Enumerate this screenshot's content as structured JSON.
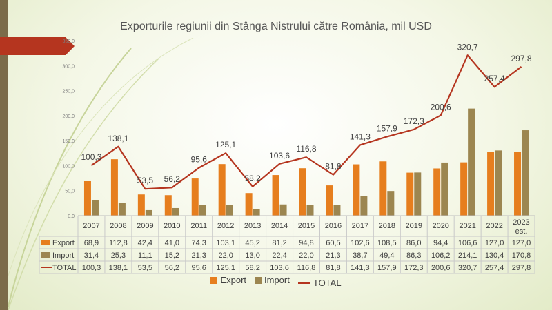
{
  "chart_data": {
    "type": "bar",
    "title": "Exporturile regiunii din Stânga Nistrului către România, mil USD",
    "categories": [
      "2007",
      "2008",
      "2009",
      "2010",
      "2011",
      "2012",
      "2013",
      "2014",
      "2015",
      "2016",
      "2017",
      "2018",
      "2019",
      "2020",
      "2021",
      "2022",
      "2023 est."
    ],
    "ylim": [
      0,
      350
    ],
    "yticks": [
      "0,0",
      "50,0",
      "100,0",
      "150,0",
      "200,0",
      "250,0",
      "300,0",
      "350,0"
    ],
    "series": [
      {
        "name": "Export",
        "type": "bar",
        "color": "#e67e1e",
        "values": [
          68.9,
          112.8,
          42.4,
          41.0,
          74.3,
          103.1,
          45.2,
          81.2,
          94.8,
          60.5,
          102.6,
          108.5,
          86.0,
          94.4,
          106.6,
          127.0,
          127.0
        ],
        "labels": [
          "68,9",
          "112,8",
          "42,4",
          "41,0",
          "74,3",
          "103,1",
          "45,2",
          "81,2",
          "94,8",
          "60,5",
          "102,6",
          "108,5",
          "86,0",
          "94,4",
          "106,6",
          "127,0",
          "127,0"
        ]
      },
      {
        "name": "Import",
        "type": "bar",
        "color": "#9c8650",
        "values": [
          31.4,
          25.3,
          11.1,
          15.2,
          21.3,
          22.0,
          13.0,
          22.4,
          22.0,
          21.3,
          38.7,
          49.4,
          86.3,
          106.2,
          214.1,
          130.4,
          170.8
        ],
        "labels": [
          "31,4",
          "25,3",
          "11,1",
          "15,2",
          "21,3",
          "22,0",
          "13,0",
          "22,4",
          "22,0",
          "21,3",
          "38,7",
          "49,4",
          "86,3",
          "106,2",
          "214,1",
          "130,4",
          "170,8"
        ]
      },
      {
        "name": "TOTAL",
        "type": "line",
        "color": "#b5351f",
        "values": [
          100.3,
          138.1,
          53.5,
          56.2,
          95.6,
          125.1,
          58.2,
          103.6,
          116.8,
          81.8,
          141.3,
          157.9,
          172.3,
          200.6,
          320.7,
          257.4,
          297.8
        ],
        "labels": [
          "100,3",
          "138,1",
          "53,5",
          "56,2",
          "95,6",
          "125,1",
          "58,2",
          "103,6",
          "116,8",
          "81,8",
          "141,3",
          "157,9",
          "172,3",
          "200,6",
          "320,7",
          "257,4",
          "297,8"
        ]
      }
    ],
    "legend_position": "bottom",
    "data_table": true,
    "grid": false
  }
}
